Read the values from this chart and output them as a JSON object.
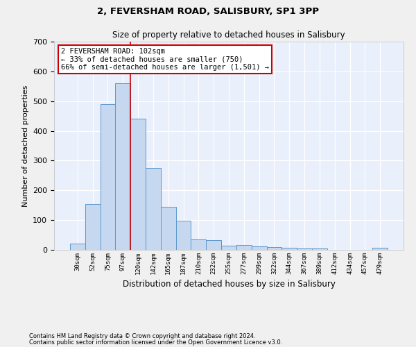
{
  "title1": "2, FEVERSHAM ROAD, SALISBURY, SP1 3PP",
  "title2": "Size of property relative to detached houses in Salisbury",
  "xlabel": "Distribution of detached houses by size in Salisbury",
  "ylabel": "Number of detached properties",
  "footnote1": "Contains HM Land Registry data © Crown copyright and database right 2024.",
  "footnote2": "Contains public sector information licensed under the Open Government Licence v3.0.",
  "bar_labels": [
    "30sqm",
    "52sqm",
    "75sqm",
    "97sqm",
    "120sqm",
    "142sqm",
    "165sqm",
    "187sqm",
    "210sqm",
    "232sqm",
    "255sqm",
    "277sqm",
    "299sqm",
    "322sqm",
    "344sqm",
    "367sqm",
    "389sqm",
    "412sqm",
    "434sqm",
    "457sqm",
    "479sqm"
  ],
  "bar_values": [
    22,
    155,
    490,
    560,
    440,
    275,
    145,
    97,
    35,
    32,
    15,
    17,
    12,
    10,
    7,
    5,
    5,
    0,
    0,
    0,
    7
  ],
  "bar_color": "#c5d8f0",
  "bar_edge_color": "#5a96cc",
  "background_color": "#eaf0fb",
  "grid_color": "#ffffff",
  "annotation_text": "2 FEVERSHAM ROAD: 102sqm\n← 33% of detached houses are smaller (750)\n66% of semi-detached houses are larger (1,501) →",
  "annotation_box_color": "#ffffff",
  "annotation_box_edge": "#cc0000",
  "vline_x": 3.5,
  "vline_color": "#cc0000",
  "ylim": [
    0,
    700
  ],
  "yticks": [
    0,
    100,
    200,
    300,
    400,
    500,
    600,
    700
  ],
  "fig_bg": "#f0f0f0"
}
